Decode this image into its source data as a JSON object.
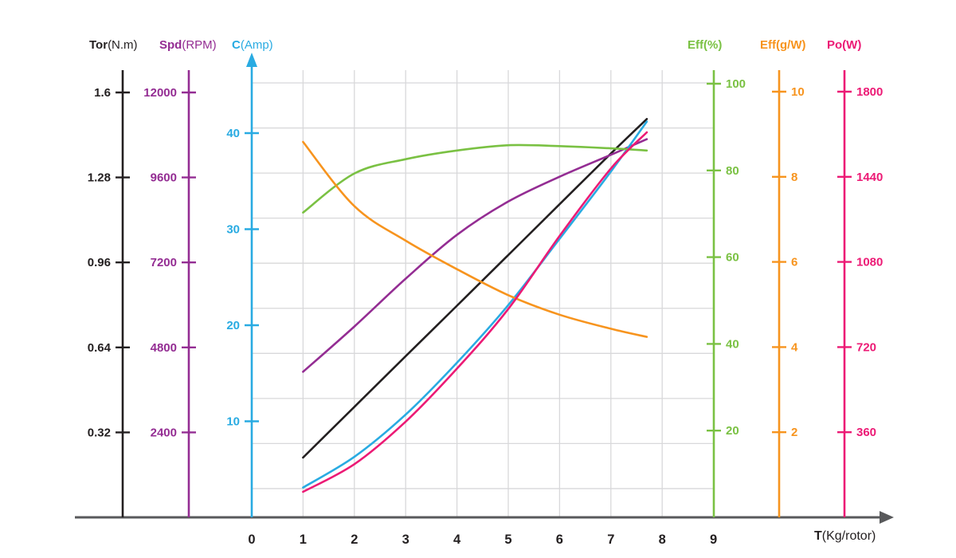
{
  "chart_data": {
    "type": "line",
    "title": "",
    "x_label": {
      "bold": "T",
      "rest": "(Kg/rotor)"
    },
    "x_ticks": [
      0,
      1,
      2,
      3,
      4,
      5,
      6,
      7,
      8,
      9
    ],
    "x_range": [
      0,
      9
    ],
    "grid": true,
    "x": [
      1,
      2,
      3,
      4,
      5,
      6,
      7,
      7.7
    ],
    "series": [
      {
        "name": "torque",
        "axis": "tor",
        "color": "#231f20",
        "values": [
          0.225,
          0.416,
          0.607,
          0.797,
          0.988,
          1.179,
          1.37,
          1.5
        ]
      },
      {
        "name": "speed",
        "axis": "spd",
        "color": "#942d93",
        "values": [
          4110,
          5390,
          6740,
          7980,
          8920,
          9620,
          10240,
          10680
        ]
      },
      {
        "name": "current",
        "axis": "cur",
        "color": "#29abe2",
        "values": [
          3.1,
          6.3,
          10.7,
          16.1,
          22.1,
          29.0,
          36.0,
          41.2
        ]
      },
      {
        "name": "efficiency_pct",
        "axis": "eff",
        "color": "#7ac143",
        "values": [
          70.3,
          79.3,
          82.6,
          84.6,
          85.8,
          85.6,
          85.1,
          84.6
        ]
      },
      {
        "name": "efficiency_g_per_w",
        "axis": "gw",
        "color": "#f7941e",
        "values": [
          8.82,
          7.31,
          6.5,
          5.83,
          5.22,
          4.76,
          4.43,
          4.24
        ]
      },
      {
        "name": "power",
        "axis": "po",
        "color": "#ec1a75",
        "values": [
          108,
          225,
          405,
          629,
          881,
          1190,
          1475,
          1628
        ]
      }
    ],
    "axes": [
      {
        "id": "tor",
        "label_bold": "Tor",
        "label_rest": "(N.m)",
        "color": "#231f20",
        "max": 1.6,
        "ticks": [
          "0.32",
          "0.64",
          "0.96",
          "1.28",
          "1.6"
        ]
      },
      {
        "id": "spd",
        "label_bold": "Spd",
        "label_rest": "(RPM)",
        "color": "#942d93",
        "max": 12000,
        "ticks": [
          "2400",
          "4800",
          "7200",
          "9600",
          "12000"
        ]
      },
      {
        "id": "cur",
        "label_bold": "C",
        "label_rest": "(Amp)",
        "color": "#29abe2",
        "max": 40,
        "ticks": [
          "10",
          "20",
          "30",
          "40"
        ]
      },
      {
        "id": "eff",
        "label_bold": "Eff",
        "label_rest": "(%)",
        "color": "#7ac143",
        "max": 100,
        "ticks": [
          "20",
          "40",
          "60",
          "80",
          "100"
        ]
      },
      {
        "id": "gw",
        "label_bold": "Eff",
        "label_rest": "(g/W)",
        "color": "#f7941e",
        "max": 10,
        "ticks": [
          "2",
          "4",
          "6",
          "8",
          "10"
        ]
      },
      {
        "id": "po",
        "label_bold": "Po",
        "label_rest": "(W)",
        "color": "#ec1a75",
        "max": 1800,
        "ticks": [
          "360",
          "720",
          "1080",
          "1440",
          "1800"
        ]
      }
    ],
    "colors": {
      "axis_line": "#58595b",
      "gridline": "#d8d8da",
      "background": "#ffffff",
      "x_tick_text": "#231f20"
    }
  }
}
